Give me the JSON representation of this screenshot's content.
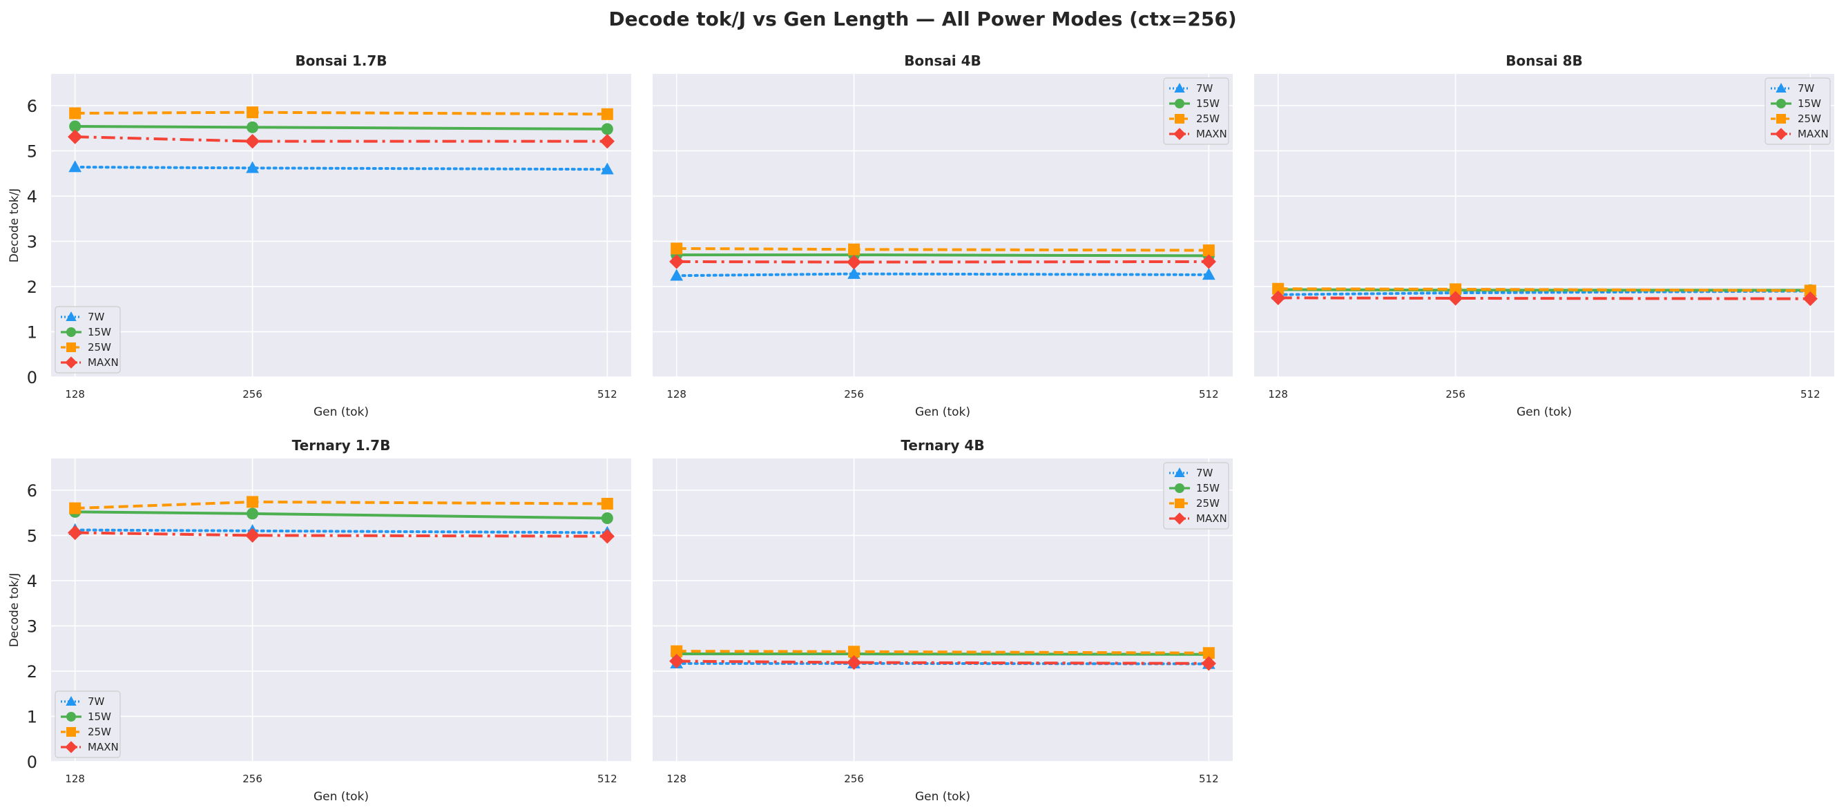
{
  "title": "Decode tok/J vs Gen Length — All Power Modes (ctx=256)",
  "colors": {
    "7W": "#2196F3",
    "15W": "#4CAF50",
    "25W": "#FF9800",
    "MAXN": "#F44336",
    "background": "#EAEAF2",
    "grid": "#FFFFFF"
  },
  "chart_data": [
    {
      "type": "line",
      "title": "Bonsai 1.7B",
      "xlabel": "Gen (tok)",
      "ylabel": "Decode tok/J",
      "x": [
        128,
        256,
        512
      ],
      "x_tick_labels": [
        "128",
        "256",
        "512"
      ],
      "y_ticks": [
        "0",
        "1",
        "2",
        "3",
        "4",
        "5",
        "6"
      ],
      "ylim": [
        0,
        6.7
      ],
      "legend_position": "lower-left",
      "series": [
        {
          "name": "7W",
          "values": [
            4.64,
            4.62,
            4.59
          ]
        },
        {
          "name": "15W",
          "values": [
            5.54,
            5.52,
            5.48
          ]
        },
        {
          "name": "25W",
          "values": [
            5.83,
            5.85,
            5.81
          ]
        },
        {
          "name": "MAXN",
          "values": [
            5.31,
            5.21,
            5.21
          ]
        }
      ]
    },
    {
      "type": "line",
      "title": "Bonsai 4B",
      "xlabel": "Gen (tok)",
      "ylabel": "",
      "x": [
        128,
        256,
        512
      ],
      "x_tick_labels": [
        "128",
        "256",
        "512"
      ],
      "y_ticks": [],
      "ylim": [
        0,
        6.7
      ],
      "legend_position": "upper-right",
      "series": [
        {
          "name": "7W",
          "values": [
            2.24,
            2.28,
            2.26
          ]
        },
        {
          "name": "15W",
          "values": [
            2.7,
            2.7,
            2.68
          ]
        },
        {
          "name": "25W",
          "values": [
            2.84,
            2.82,
            2.8
          ]
        },
        {
          "name": "MAXN",
          "values": [
            2.55,
            2.54,
            2.55
          ]
        }
      ]
    },
    {
      "type": "line",
      "title": "Bonsai 8B",
      "xlabel": "Gen (tok)",
      "ylabel": "",
      "x": [
        128,
        256,
        512
      ],
      "x_tick_labels": [
        "128",
        "256",
        "512"
      ],
      "y_ticks": [],
      "ylim": [
        0,
        6.7
      ],
      "legend_position": "upper-right",
      "series": [
        {
          "name": "7W",
          "values": [
            1.82,
            1.86,
            1.9
          ]
        },
        {
          "name": "15W",
          "values": [
            1.93,
            1.92,
            1.92
          ]
        },
        {
          "name": "25W",
          "values": [
            1.95,
            1.94,
            1.91
          ]
        },
        {
          "name": "MAXN",
          "values": [
            1.75,
            1.74,
            1.73
          ]
        }
      ]
    },
    {
      "type": "line",
      "title": "Ternary 1.7B",
      "xlabel": "Gen (tok)",
      "ylabel": "Decode tok/J",
      "x": [
        128,
        256,
        512
      ],
      "x_tick_labels": [
        "128",
        "256",
        "512"
      ],
      "y_ticks": [
        "0",
        "1",
        "2",
        "3",
        "4",
        "5",
        "6"
      ],
      "ylim": [
        0,
        6.7
      ],
      "legend_position": "lower-left",
      "series": [
        {
          "name": "7W",
          "values": [
            5.12,
            5.1,
            5.06
          ]
        },
        {
          "name": "15W",
          "values": [
            5.52,
            5.48,
            5.38
          ]
        },
        {
          "name": "25W",
          "values": [
            5.6,
            5.74,
            5.7
          ]
        },
        {
          "name": "MAXN",
          "values": [
            5.06,
            5.0,
            4.98
          ]
        }
      ]
    },
    {
      "type": "line",
      "title": "Ternary 4B",
      "xlabel": "Gen (tok)",
      "ylabel": "",
      "x": [
        128,
        256,
        512
      ],
      "x_tick_labels": [
        "128",
        "256",
        "512"
      ],
      "y_ticks": [],
      "ylim": [
        0,
        6.7
      ],
      "legend_position": "upper-right",
      "series": [
        {
          "name": "7W",
          "values": [
            2.17,
            2.17,
            2.16
          ]
        },
        {
          "name": "15W",
          "values": [
            2.38,
            2.38,
            2.37
          ]
        },
        {
          "name": "25W",
          "values": [
            2.44,
            2.43,
            2.4
          ]
        },
        {
          "name": "MAXN",
          "values": [
            2.22,
            2.19,
            2.17
          ]
        }
      ]
    }
  ]
}
